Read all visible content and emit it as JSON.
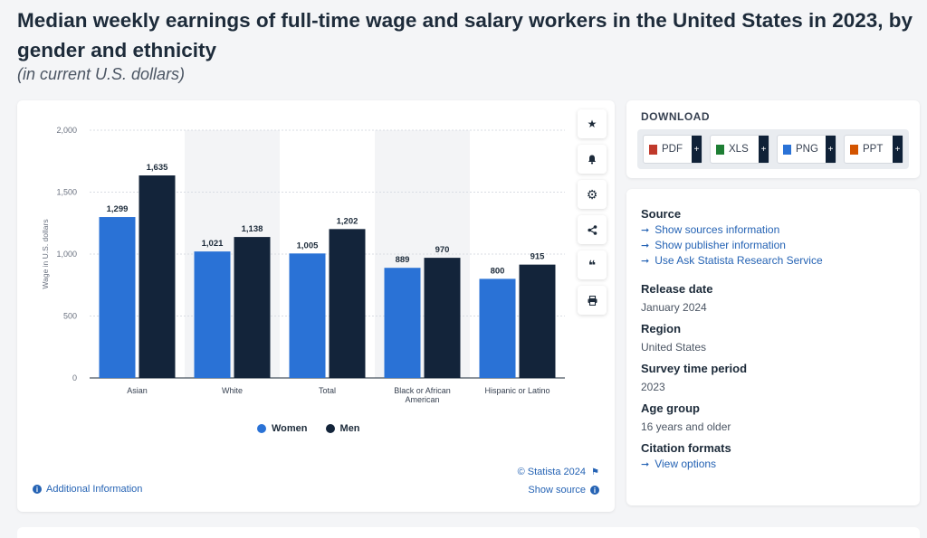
{
  "page": {
    "title": "Median weekly earnings of full-time wage and salary workers in the United States in 2023, by gender and ethnicity",
    "subtitle": "(in current U.S. dollars)"
  },
  "chart_data": {
    "type": "bar",
    "categories": [
      "Asian",
      "White",
      "Total",
      "Black or African American",
      "Hispanic or Latino"
    ],
    "category_lines": [
      [
        "Asian"
      ],
      [
        "White"
      ],
      [
        "Total"
      ],
      [
        "Black or African",
        "American"
      ],
      [
        "Hispanic or Latino"
      ]
    ],
    "series": [
      {
        "name": "Women",
        "values": [
          1299,
          1021,
          1005,
          889,
          800
        ],
        "color": "#2a72d6",
        "labels": [
          "1,299",
          "1,021",
          "1,005",
          "889",
          "800"
        ]
      },
      {
        "name": "Men",
        "values": [
          1635,
          1138,
          1202,
          970,
          915
        ],
        "color": "#13243a",
        "labels": [
          "1,635",
          "1,138",
          "1,202",
          "970",
          "915"
        ]
      }
    ],
    "ylabel": "Wage in U.S. dollars",
    "xlabel": "",
    "ylim": [
      0,
      2000
    ],
    "yticks": [
      0,
      500,
      1000,
      1500,
      2000
    ],
    "ytick_labels": [
      "0",
      "500",
      "1,000",
      "1,500",
      "2,000"
    ],
    "grid": true,
    "legend_position": "bottom-center"
  },
  "chart_footer": {
    "copyright": "© Statista 2024",
    "additional_info": "Additional Information",
    "show_source": "Show source"
  },
  "toolbar": {
    "icons": [
      "star-icon",
      "bell-icon",
      "gear-icon",
      "share-icon",
      "quote-icon",
      "print-icon"
    ]
  },
  "download": {
    "title": "DOWNLOAD",
    "buttons": [
      {
        "label": "PDF",
        "color": "#c0392b"
      },
      {
        "label": "XLS",
        "color": "#1e7e34"
      },
      {
        "label": "PNG",
        "color": "#2a72d6"
      },
      {
        "label": "PPT",
        "color": "#d35400"
      }
    ],
    "plus": "+"
  },
  "meta": {
    "source_heading": "Source",
    "source_links": [
      "Show sources information",
      "Show publisher information",
      "Use Ask Statista Research Service"
    ],
    "release_heading": "Release date",
    "release_value": "January 2024",
    "region_heading": "Region",
    "region_value": "United States",
    "survey_heading": "Survey time period",
    "survey_value": "2023",
    "age_heading": "Age group",
    "age_value": "16 years and older",
    "citation_heading": "Citation formats",
    "citation_link": "View options"
  }
}
